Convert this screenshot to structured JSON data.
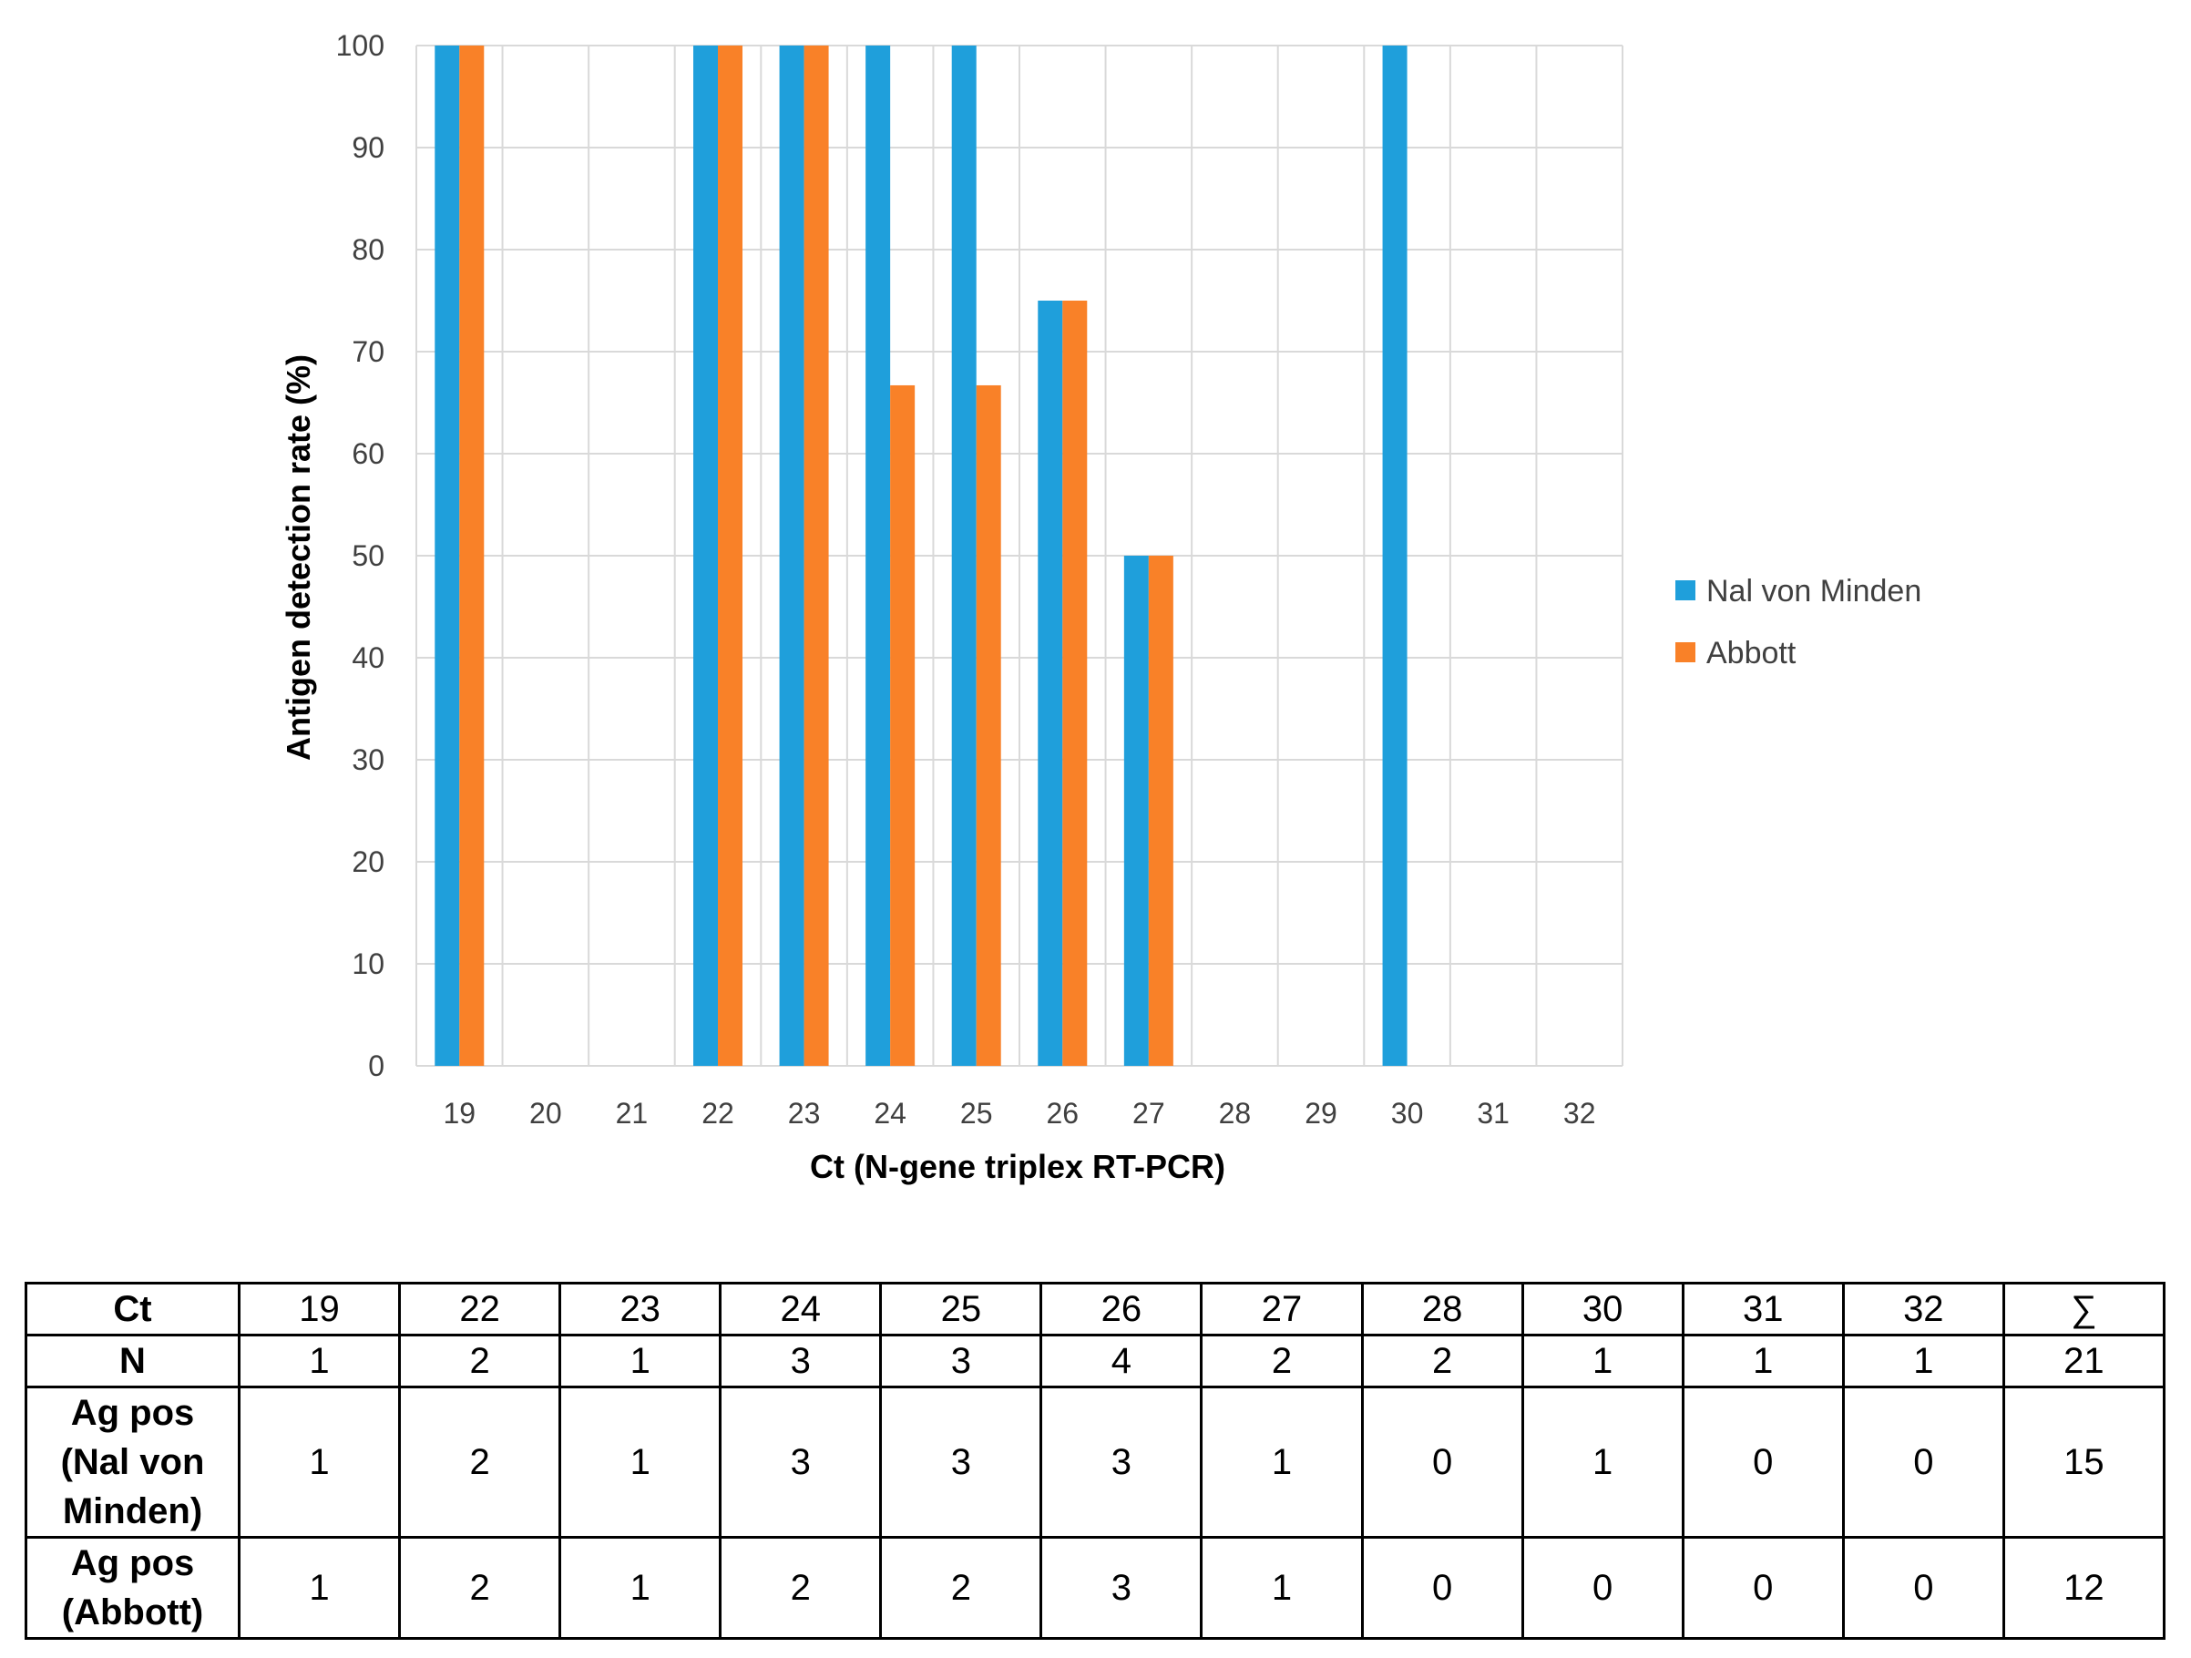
{
  "chart_data": {
    "type": "bar",
    "title": "",
    "xlabel": "Ct (N-gene triplex RT-PCR)",
    "ylabel": "Antigen detection rate (%)",
    "ylim": [
      0,
      100
    ],
    "yticks": [
      0,
      10,
      20,
      30,
      40,
      50,
      60,
      70,
      80,
      90,
      100
    ],
    "grid": true,
    "legend_position": "right",
    "categories": [
      "19",
      "20",
      "21",
      "22",
      "23",
      "24",
      "25",
      "26",
      "27",
      "28",
      "29",
      "30",
      "31",
      "32"
    ],
    "series": [
      {
        "name": "Nal von Minden",
        "color": "#1F9FDB",
        "values": [
          100,
          0,
          0,
          100,
          100,
          100,
          100,
          75,
          50,
          0,
          0,
          100,
          0,
          0
        ]
      },
      {
        "name": "Abbott",
        "color": "#F98128",
        "values": [
          100,
          0,
          0,
          100,
          100,
          66.7,
          66.7,
          75,
          50,
          0,
          0,
          0,
          0,
          0
        ]
      }
    ]
  },
  "table": {
    "header": [
      "Ct",
      "19",
      "22",
      "23",
      "24",
      "25",
      "26",
      "27",
      "28",
      "30",
      "31",
      "32",
      "∑"
    ],
    "rows": [
      {
        "label": "N",
        "values": [
          "1",
          "2",
          "1",
          "3",
          "3",
          "4",
          "2",
          "2",
          "1",
          "1",
          "1",
          "21"
        ]
      },
      {
        "label_lines": [
          "Ag pos",
          "(Nal von",
          "Minden)"
        ],
        "values": [
          "1",
          "2",
          "1",
          "3",
          "3",
          "3",
          "1",
          "0",
          "1",
          "0",
          "0",
          "15"
        ]
      },
      {
        "label_lines": [
          "Ag pos",
          "(Abbott)"
        ],
        "values": [
          "1",
          "2",
          "1",
          "2",
          "2",
          "3",
          "1",
          "0",
          "0",
          "0",
          "0",
          "12"
        ]
      }
    ]
  }
}
